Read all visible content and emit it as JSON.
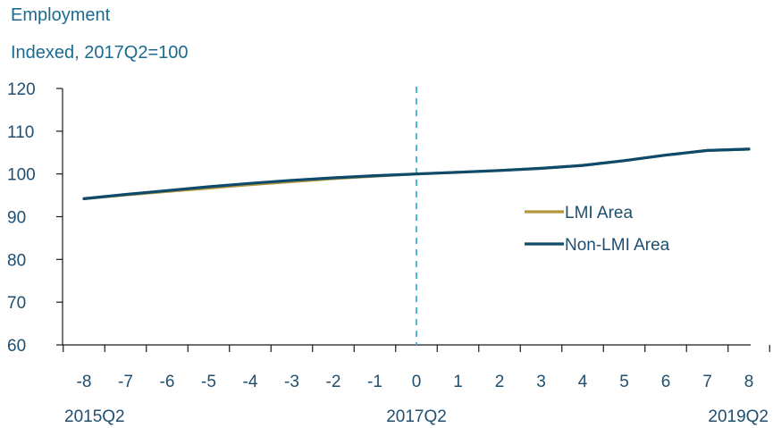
{
  "chart_data": {
    "type": "line",
    "title": "Employment",
    "subtitle": "Indexed, 2017Q2=100",
    "xlabel": "",
    "ylabel": "",
    "x": [
      -8,
      -7,
      -6,
      -5,
      -4,
      -3,
      -2,
      -1,
      0,
      1,
      2,
      3,
      4,
      5,
      6,
      7,
      8
    ],
    "xlim": [
      -8,
      8
    ],
    "ylim": [
      60,
      120
    ],
    "yticks": [
      60,
      70,
      80,
      90,
      100,
      110,
      120
    ],
    "period_labels": [
      {
        "x": -8,
        "label": "2015Q2"
      },
      {
        "x": 0,
        "label": "2017Q2"
      },
      {
        "x": 8,
        "label": "2019Q2"
      }
    ],
    "reference_line": {
      "x": 0,
      "style": "dashed",
      "color": "#3bb3d6"
    },
    "series": [
      {
        "name": "LMI Area",
        "color": "#b5963a",
        "values": [
          94.2,
          95.1,
          95.9,
          96.7,
          97.5,
          98.2,
          98.9,
          99.5,
          100.0,
          100.4,
          100.8,
          101.3,
          102.0,
          103.1,
          104.4,
          105.5,
          105.8
        ]
      },
      {
        "name": "Non-LMI Area",
        "color": "#0e4a6c",
        "values": [
          94.2,
          95.2,
          96.1,
          97.0,
          97.8,
          98.5,
          99.1,
          99.6,
          100.0,
          100.4,
          100.8,
          101.3,
          102.0,
          103.1,
          104.4,
          105.5,
          105.8
        ]
      }
    ],
    "legend_position": "right"
  }
}
